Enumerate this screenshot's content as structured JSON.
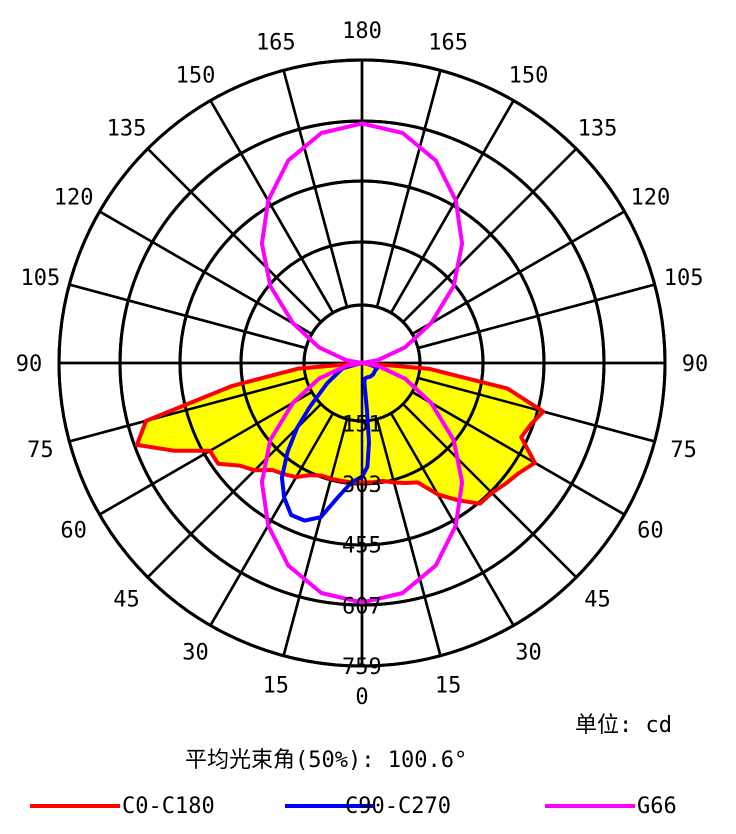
{
  "chart_data": {
    "type": "polar",
    "angle_labels_left": [
      "180",
      "165",
      "150",
      "135",
      "120",
      "105",
      "90",
      "75",
      "60",
      "45",
      "30",
      "15",
      "0"
    ],
    "angle_labels_right": [
      "165",
      "150",
      "135",
      "120",
      "105",
      "90",
      "75",
      "60",
      "45",
      "30",
      "15"
    ],
    "radial_ticks": [
      151,
      303,
      455,
      607,
      759
    ],
    "rmax": 759,
    "series": [
      {
        "name": "C0-C180",
        "color": "#ff0000",
        "fill": "#ffff00",
        "points": [
          [
            -90,
            0
          ],
          [
            -85,
            160
          ],
          [
            -80,
            330
          ],
          [
            -75,
            560
          ],
          [
            -70,
            600
          ],
          [
            -65,
            520
          ],
          [
            -60,
            440
          ],
          [
            -55,
            440
          ],
          [
            -50,
            400
          ],
          [
            -45,
            380
          ],
          [
            -40,
            350
          ],
          [
            -35,
            340
          ],
          [
            -30,
            330
          ],
          [
            -25,
            310
          ],
          [
            -20,
            300
          ],
          [
            -15,
            300
          ],
          [
            -10,
            300
          ],
          [
            -5,
            300
          ],
          [
            0,
            300
          ],
          [
            5,
            300
          ],
          [
            10,
            300
          ],
          [
            15,
            310
          ],
          [
            20,
            320
          ],
          [
            25,
            330
          ],
          [
            30,
            380
          ],
          [
            35,
            420
          ],
          [
            40,
            460
          ],
          [
            45,
            460
          ],
          [
            50,
            470
          ],
          [
            55,
            480
          ],
          [
            60,
            500
          ],
          [
            65,
            440
          ],
          [
            70,
            450
          ],
          [
            75,
            470
          ],
          [
            80,
            370
          ],
          [
            85,
            170
          ],
          [
            90,
            0
          ]
        ]
      },
      {
        "name": "C90-C270",
        "color": "#0000ff",
        "points": [
          [
            -90,
            0
          ],
          [
            -75,
            50
          ],
          [
            -60,
            100
          ],
          [
            -50,
            170
          ],
          [
            -45,
            230
          ],
          [
            -40,
            290
          ],
          [
            -35,
            350
          ],
          [
            -30,
            390
          ],
          [
            -25,
            420
          ],
          [
            -20,
            420
          ],
          [
            -15,
            400
          ],
          [
            -10,
            340
          ],
          [
            -5,
            300
          ],
          [
            0,
            285
          ],
          [
            3,
            260
          ],
          [
            5,
            200
          ],
          [
            6,
            120
          ],
          [
            7,
            50
          ],
          [
            10,
            40
          ],
          [
            20,
            38
          ],
          [
            30,
            40
          ],
          [
            45,
            40
          ],
          [
            60,
            38
          ],
          [
            70,
            40
          ],
          [
            75,
            30
          ],
          [
            85,
            8
          ],
          [
            90,
            0
          ]
        ]
      },
      {
        "name": "G66",
        "color": "#ff00ff",
        "points": [
          [
            -90,
            0
          ],
          [
            -80,
            40
          ],
          [
            -70,
            115
          ],
          [
            -60,
            200
          ],
          [
            -50,
            300
          ],
          [
            -40,
            390
          ],
          [
            -30,
            470
          ],
          [
            -20,
            540
          ],
          [
            -10,
            585
          ],
          [
            0,
            600
          ],
          [
            10,
            585
          ],
          [
            20,
            540
          ],
          [
            30,
            470
          ],
          [
            40,
            390
          ],
          [
            50,
            300
          ],
          [
            60,
            200
          ],
          [
            70,
            115
          ],
          [
            80,
            40
          ],
          [
            90,
            0
          ],
          [
            100,
            40
          ],
          [
            110,
            115
          ],
          [
            120,
            200
          ],
          [
            130,
            300
          ],
          [
            140,
            390
          ],
          [
            150,
            470
          ],
          [
            160,
            540
          ],
          [
            170,
            585
          ],
          [
            180,
            600
          ],
          [
            190,
            585
          ],
          [
            200,
            540
          ],
          [
            210,
            470
          ],
          [
            220,
            390
          ],
          [
            230,
            300
          ],
          [
            240,
            200
          ],
          [
            250,
            115
          ],
          [
            260,
            40
          ],
          [
            270,
            0
          ]
        ]
      }
    ]
  },
  "unit_label": "单位: cd",
  "beam_angle_label": "平均光束角(50%): 100.6°",
  "legend": [
    {
      "name": "C0-C180",
      "color": "#ff0000"
    },
    {
      "name": "C90-C270",
      "color": "#0000ff"
    },
    {
      "name": "G66",
      "color": "#ff00ff"
    }
  ]
}
